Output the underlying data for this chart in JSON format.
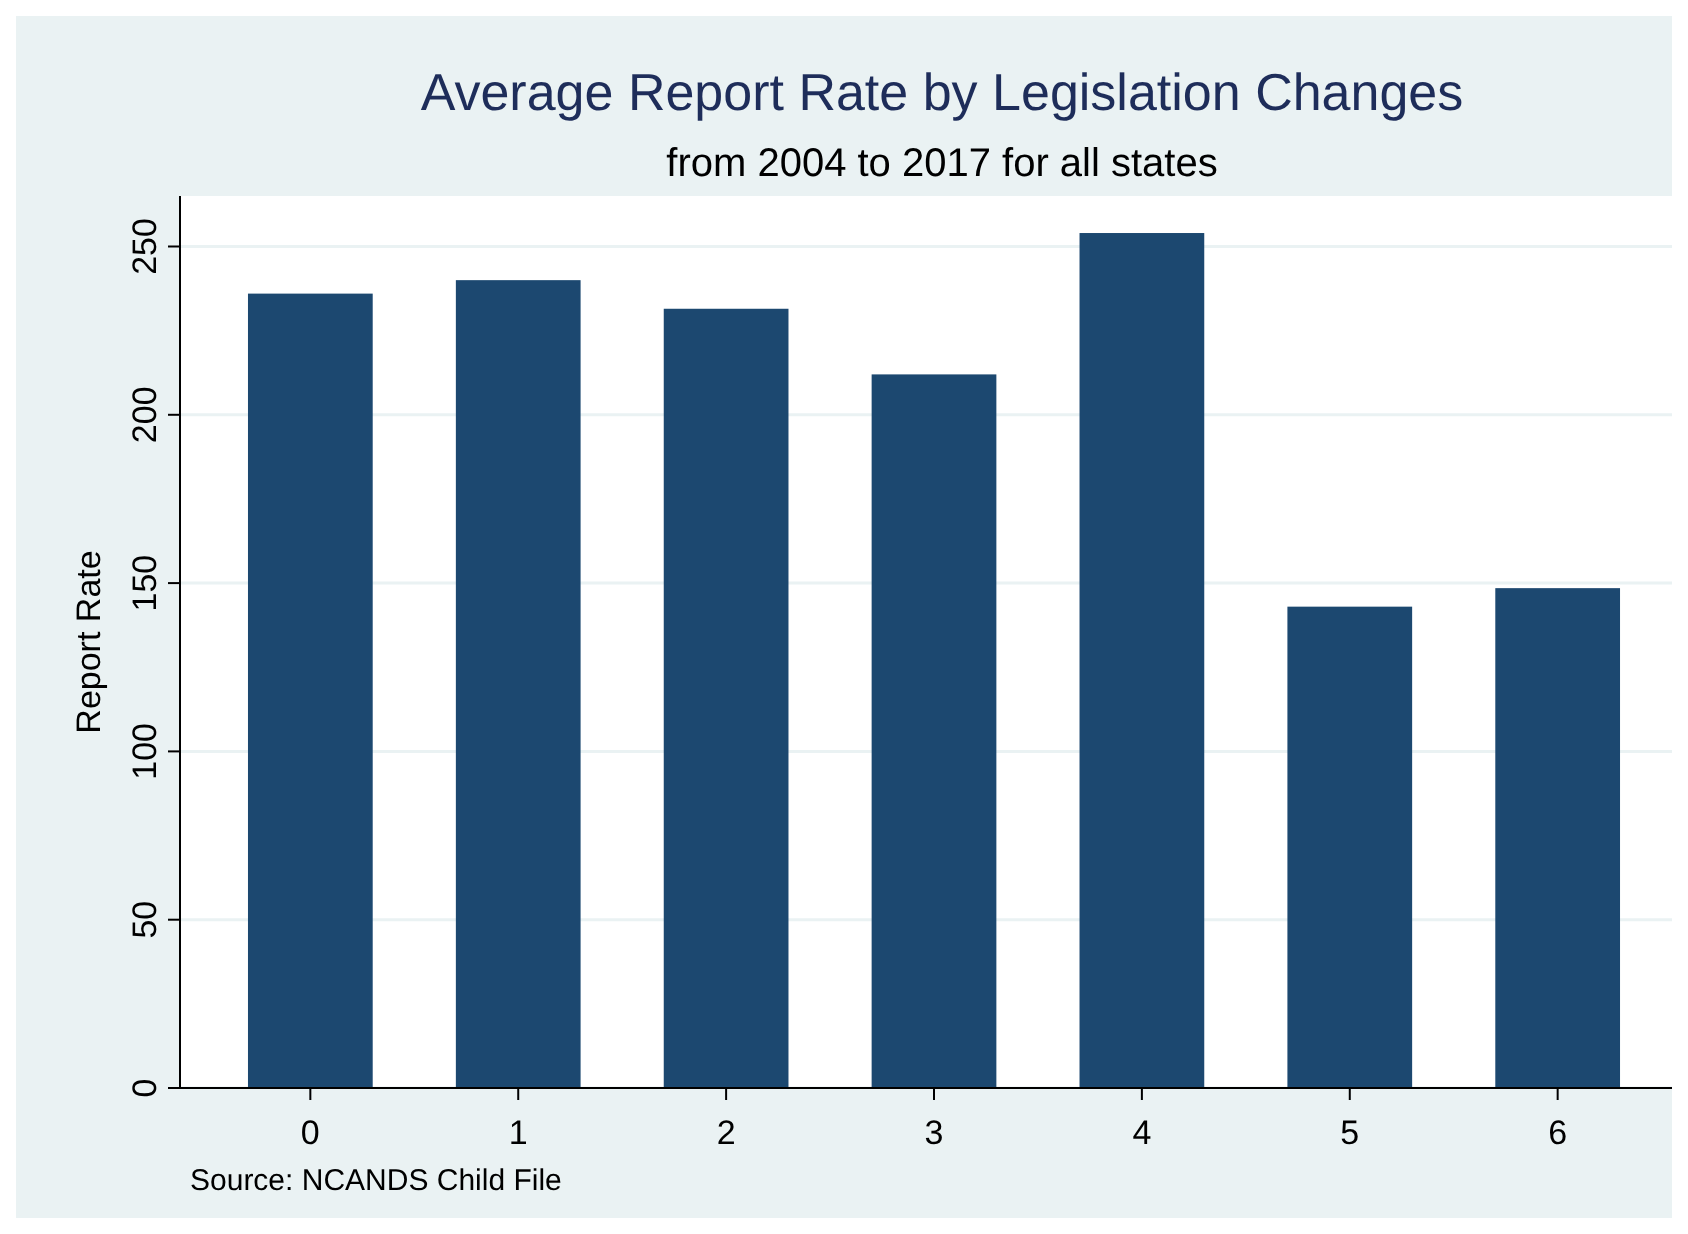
{
  "chart_data": {
    "type": "bar",
    "title": "Average Report Rate by Legislation Changes",
    "subtitle": "from 2004 to 2017 for all states",
    "ylabel": "Report Rate",
    "annotations": [
      "Source: NCANDS Child File"
    ],
    "categories": [
      "0",
      "1",
      "2",
      "3",
      "4",
      "5",
      "6"
    ],
    "values": [
      236,
      240,
      231.5,
      212,
      254,
      143,
      148.5
    ],
    "color": "#1c4870",
    "ylim": [
      0,
      265
    ],
    "yticks": [
      0,
      50,
      100,
      150,
      200,
      250
    ],
    "grid": "y"
  }
}
